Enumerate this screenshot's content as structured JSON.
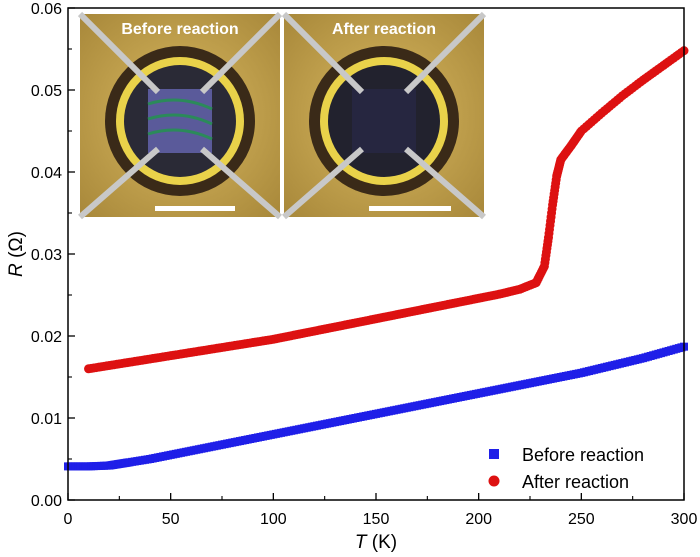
{
  "chart_data": {
    "type": "scatter",
    "xlabel": {
      "symbol": "T",
      "unit": " (K)"
    },
    "ylabel": {
      "symbol": "R",
      "unit": " (Ω)"
    },
    "xlim": [
      0,
      300
    ],
    "ylim": [
      0,
      0.06
    ],
    "x_ticks": [
      "0",
      "50",
      "100",
      "150",
      "200",
      "250",
      "300"
    ],
    "y_ticks": [
      "0.00",
      "0.01",
      "0.02",
      "0.03",
      "0.04",
      "0.05",
      "0.06"
    ],
    "grid": false,
    "legend_position": "bottom-right",
    "series": [
      {
        "name": "Before reaction",
        "marker": "square",
        "color": "#1f1fe8",
        "points": [
          [
            0,
            0.0041
          ],
          [
            10,
            0.0041
          ],
          [
            20,
            0.0042
          ],
          [
            25,
            0.0044
          ],
          [
            30,
            0.0046
          ],
          [
            40,
            0.005
          ],
          [
            50,
            0.0055
          ],
          [
            60,
            0.006
          ],
          [
            70,
            0.0065
          ],
          [
            80,
            0.007
          ],
          [
            90,
            0.0075
          ],
          [
            100,
            0.008
          ],
          [
            110,
            0.0085
          ],
          [
            120,
            0.009
          ],
          [
            130,
            0.0095
          ],
          [
            140,
            0.01
          ],
          [
            150,
            0.0105
          ],
          [
            160,
            0.011
          ],
          [
            170,
            0.0115
          ],
          [
            180,
            0.012
          ],
          [
            190,
            0.0125
          ],
          [
            200,
            0.013
          ],
          [
            210,
            0.0135
          ],
          [
            220,
            0.014
          ],
          [
            230,
            0.0145
          ],
          [
            240,
            0.015
          ],
          [
            250,
            0.0155
          ],
          [
            260,
            0.0161
          ],
          [
            270,
            0.0167
          ],
          [
            280,
            0.0173
          ],
          [
            290,
            0.018
          ],
          [
            300,
            0.0187
          ]
        ]
      },
      {
        "name": "After reaction",
        "marker": "circle",
        "color": "#dd1111",
        "points": [
          [
            10,
            0.016
          ],
          [
            20,
            0.0164
          ],
          [
            30,
            0.0168
          ],
          [
            40,
            0.0172
          ],
          [
            50,
            0.0176
          ],
          [
            60,
            0.018
          ],
          [
            70,
            0.0184
          ],
          [
            80,
            0.0188
          ],
          [
            90,
            0.0192
          ],
          [
            100,
            0.0196
          ],
          [
            110,
            0.0201
          ],
          [
            120,
            0.0206
          ],
          [
            130,
            0.0211
          ],
          [
            140,
            0.0216
          ],
          [
            150,
            0.0221
          ],
          [
            160,
            0.0226
          ],
          [
            170,
            0.0231
          ],
          [
            180,
            0.0236
          ],
          [
            190,
            0.0241
          ],
          [
            200,
            0.0246
          ],
          [
            210,
            0.0251
          ],
          [
            220,
            0.0257
          ],
          [
            228,
            0.0265
          ],
          [
            232,
            0.0285
          ],
          [
            234,
            0.032
          ],
          [
            236,
            0.036
          ],
          [
            238,
            0.0395
          ],
          [
            240,
            0.0415
          ],
          [
            245,
            0.0432
          ],
          [
            250,
            0.045
          ],
          [
            260,
            0.0472
          ],
          [
            270,
            0.0493
          ],
          [
            280,
            0.0512
          ],
          [
            290,
            0.053
          ],
          [
            300,
            0.0548
          ]
        ]
      }
    ],
    "insets": [
      {
        "title": "Before reaction"
      },
      {
        "title": "After reaction"
      }
    ]
  }
}
